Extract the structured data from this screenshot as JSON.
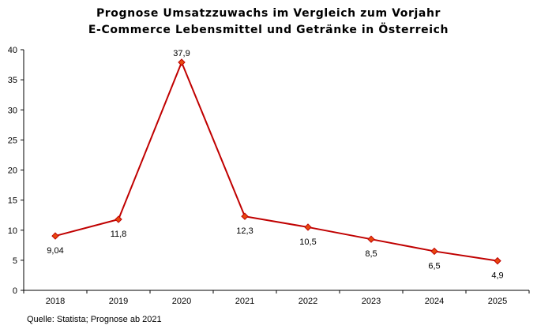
{
  "chart_data": {
    "type": "line",
    "title": "Prognose Umsatzzuwachs im Vergleich zum Vorjahr",
    "subtitle": "E-Commerce Lebensmittel und Getränke in Österreich",
    "categories": [
      "2018",
      "2019",
      "2020",
      "2021",
      "2022",
      "2023",
      "2024",
      "2025"
    ],
    "series": [
      {
        "values": [
          9.04,
          11.8,
          37.9,
          12.3,
          10.5,
          8.5,
          6.5,
          4.9
        ],
        "labels": [
          "9,04",
          "11,8",
          "37,9",
          "12,3",
          "10,5",
          "8,5",
          "6,5",
          "4,9"
        ],
        "color": "#c00000",
        "marker_color": "#e8490f"
      }
    ],
    "ylim": [
      0,
      40
    ],
    "yticks": [
      "0",
      "5",
      "10",
      "15",
      "20",
      "25",
      "30",
      "35",
      "40"
    ],
    "xlabel": "",
    "ylabel": "",
    "grid": false,
    "legend": "none"
  },
  "source_note": "Quelle: Statista; Prognose ab 2021"
}
